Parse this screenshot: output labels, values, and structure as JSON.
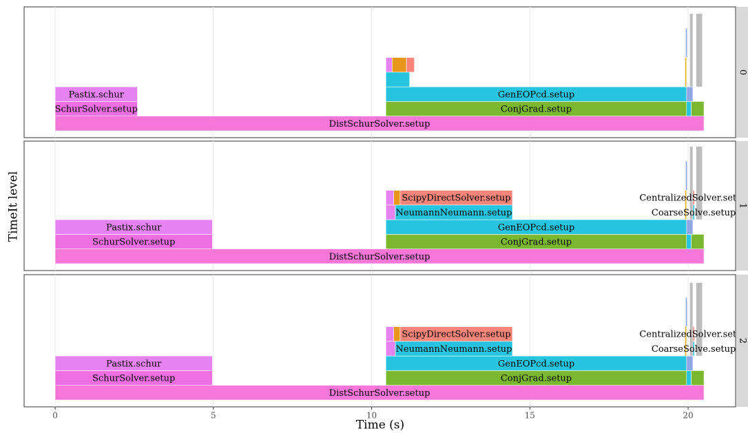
{
  "chart_data": {
    "type": "timeline",
    "x_label": "Time (s)",
    "y_label": "TimeIt level",
    "xlim": [
      -0.98,
      21.5
    ],
    "xticks": [
      0,
      5,
      10,
      15,
      20
    ],
    "grid": true,
    "panels": [
      {
        "strip": "0",
        "segments": [
          {
            "label": "DistSchurSolver.setup",
            "start": 0,
            "end": 20.5,
            "level": 0,
            "color": "#f777d8"
          },
          {
            "label": "SchurSolver.setup",
            "start": 0,
            "end": 2.6,
            "level": 1,
            "color": "#ee6fe2"
          },
          {
            "label": "Pastix.schur",
            "start": 0,
            "end": 2.6,
            "level": 2,
            "color": "#e683f2"
          },
          {
            "label": "ConjGrad.setup",
            "start": 10.45,
            "end": 19.95,
            "level": 1,
            "color": "#7cb82f"
          },
          {
            "label": "GenEOPcd.setup",
            "start": 10.45,
            "end": 19.95,
            "level": 2,
            "color": "#26c4de"
          },
          {
            "label": null,
            "start": 10.45,
            "end": 11.2,
            "level": 3,
            "color": "#26c4de"
          },
          {
            "label": null,
            "start": 10.45,
            "end": 10.65,
            "level": 4,
            "color": "#e683f2"
          },
          {
            "label": null,
            "start": 10.65,
            "end": 11.1,
            "level": 4,
            "color": "#e8961c"
          },
          {
            "label": null,
            "start": 11.1,
            "end": 11.35,
            "level": 4,
            "color": "#f8857a"
          },
          {
            "label": null,
            "start": 19.95,
            "end": 20.1,
            "level": 1,
            "color": "#26c4de"
          },
          {
            "label": null,
            "start": 20.1,
            "end": 20.5,
            "level": 1,
            "color": "#7cb82f"
          },
          {
            "label": null,
            "start": 19.95,
            "end": 20.15,
            "level": 2,
            "color": "#8fa8e6"
          },
          {
            "label": null,
            "start": 19.9,
            "end": 19.95,
            "level": 3,
            "color": "#e8b41c",
            "span": 2
          },
          {
            "label": null,
            "start": 19.92,
            "end": 19.97,
            "level": 5,
            "color": "#8fa8e6",
            "span": 2
          },
          {
            "label": null,
            "start": 20.05,
            "end": 20.15,
            "level": 3,
            "color": "#bdbdbd",
            "span": 5
          },
          {
            "label": null,
            "start": 20.25,
            "end": 20.45,
            "level": 3,
            "color": "#bdbdbd",
            "span": 5
          }
        ]
      },
      {
        "strip": "1",
        "segments": [
          {
            "label": "DistSchurSolver.setup",
            "start": 0,
            "end": 20.5,
            "level": 0,
            "color": "#f777d8"
          },
          {
            "label": "SchurSolver.setup",
            "start": 0,
            "end": 4.97,
            "level": 1,
            "color": "#ee6fe2"
          },
          {
            "label": "Pastix.schur",
            "start": 0,
            "end": 4.97,
            "level": 2,
            "color": "#e683f2"
          },
          {
            "label": "ConjGrad.setup",
            "start": 10.45,
            "end": 19.95,
            "level": 1,
            "color": "#7cb82f"
          },
          {
            "label": "GenEOPcd.setup",
            "start": 10.45,
            "end": 19.95,
            "level": 2,
            "color": "#26c4de"
          },
          {
            "label": null,
            "start": 10.45,
            "end": 10.75,
            "level": 3,
            "color": "#e683f2"
          },
          {
            "label": "NeumannNeumann.setup",
            "start": 10.75,
            "end": 14.45,
            "level": 3,
            "color": "#26c4de"
          },
          {
            "label": null,
            "start": 10.45,
            "end": 10.7,
            "level": 4,
            "color": "#e683f2"
          },
          {
            "label": null,
            "start": 10.7,
            "end": 10.9,
            "level": 4,
            "color": "#e8961c"
          },
          {
            "label": "ScipyDirectSolver.setup",
            "start": 10.9,
            "end": 14.45,
            "level": 4,
            "color": "#f8857a"
          },
          {
            "label": null,
            "start": 19.95,
            "end": 20.1,
            "level": 1,
            "color": "#26c4de"
          },
          {
            "label": null,
            "start": 20.1,
            "end": 20.5,
            "level": 1,
            "color": "#7cb82f"
          },
          {
            "label": null,
            "start": 19.95,
            "end": 20.15,
            "level": 2,
            "color": "#8fa8e6"
          },
          {
            "label": "CoarseSolve.setup",
            "start": 20.15,
            "end": 20.2,
            "level": 3,
            "color": "#26c4de"
          },
          {
            "label": "CentralizedSolver.setup",
            "start": 20.15,
            "end": 20.2,
            "level": 4,
            "color": "#f8857a"
          },
          {
            "label": null,
            "start": 19.9,
            "end": 19.95,
            "level": 3,
            "color": "#e8b41c",
            "span": 2
          },
          {
            "label": null,
            "start": 19.92,
            "end": 19.97,
            "level": 5,
            "color": "#8fa8e6",
            "span": 2
          },
          {
            "label": null,
            "start": 20.05,
            "end": 20.15,
            "level": 3,
            "color": "#bdbdbd",
            "span": 5
          },
          {
            "label": null,
            "start": 20.25,
            "end": 20.45,
            "level": 3,
            "color": "#bdbdbd",
            "span": 5
          }
        ]
      },
      {
        "strip": "2",
        "segments": [
          {
            "label": "DistSchurSolver.setup",
            "start": 0,
            "end": 20.5,
            "level": 0,
            "color": "#f777d8"
          },
          {
            "label": "SchurSolver.setup",
            "start": 0,
            "end": 4.97,
            "level": 1,
            "color": "#ee6fe2"
          },
          {
            "label": "Pastix.schur",
            "start": 0,
            "end": 4.97,
            "level": 2,
            "color": "#e683f2"
          },
          {
            "label": "ConjGrad.setup",
            "start": 10.45,
            "end": 19.95,
            "level": 1,
            "color": "#7cb82f"
          },
          {
            "label": "GenEOPcd.setup",
            "start": 10.45,
            "end": 19.95,
            "level": 2,
            "color": "#26c4de"
          },
          {
            "label": null,
            "start": 10.45,
            "end": 10.75,
            "level": 3,
            "color": "#e683f2"
          },
          {
            "label": "NeumannNeumann.setup",
            "start": 10.75,
            "end": 14.45,
            "level": 3,
            "color": "#26c4de"
          },
          {
            "label": null,
            "start": 10.45,
            "end": 10.7,
            "level": 4,
            "color": "#e683f2"
          },
          {
            "label": null,
            "start": 10.7,
            "end": 10.9,
            "level": 4,
            "color": "#e8961c"
          },
          {
            "label": "ScipyDirectSolver.setup",
            "start": 10.9,
            "end": 14.45,
            "level": 4,
            "color": "#f8857a"
          },
          {
            "label": null,
            "start": 19.95,
            "end": 20.1,
            "level": 1,
            "color": "#26c4de"
          },
          {
            "label": null,
            "start": 20.1,
            "end": 20.5,
            "level": 1,
            "color": "#7cb82f"
          },
          {
            "label": null,
            "start": 19.95,
            "end": 20.15,
            "level": 2,
            "color": "#8fa8e6"
          },
          {
            "label": "CoarseSolve.setup",
            "start": 20.15,
            "end": 20.2,
            "level": 3,
            "color": "#26c4de"
          },
          {
            "label": "CentralizedSolver.setup",
            "start": 20.15,
            "end": 20.2,
            "level": 4,
            "color": "#f8857a"
          },
          {
            "label": null,
            "start": 19.9,
            "end": 19.95,
            "level": 3,
            "color": "#e8b41c",
            "span": 2
          },
          {
            "label": null,
            "start": 19.92,
            "end": 19.97,
            "level": 5,
            "color": "#8fa8e6",
            "span": 2
          },
          {
            "label": null,
            "start": 20.05,
            "end": 20.15,
            "level": 3,
            "color": "#bdbdbd",
            "span": 5
          },
          {
            "label": null,
            "start": 20.25,
            "end": 20.45,
            "level": 3,
            "color": "#bdbdbd",
            "span": 5
          }
        ]
      }
    ]
  }
}
